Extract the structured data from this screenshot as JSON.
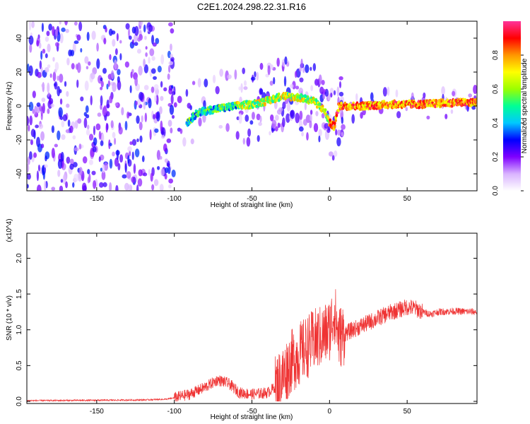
{
  "title": "C2E1.2024.298.22.31.R16",
  "chart_data": [
    {
      "type": "heatmap",
      "xlabel": "Height of straight line (km)",
      "ylabel": "Frequency (Hz)",
      "xlim": [
        -195,
        95
      ],
      "ylim": [
        -50,
        50
      ],
      "xticks": [
        -150,
        -100,
        -50,
        0,
        50
      ],
      "yticks": [
        -40,
        -20,
        0,
        20,
        40
      ],
      "colorbar": {
        "label": "Normalized spectral amplitude",
        "range": [
          0.0,
          1.0
        ],
        "ticks": [
          "0.0",
          "0.2",
          "0.4",
          "0.6",
          "0.8"
        ],
        "tick_values": [
          0.0,
          0.2,
          0.4,
          0.6,
          0.8
        ],
        "colors": [
          "#ffffff",
          "#d9b3ff",
          "#7f00ff",
          "#0000ff",
          "#00c8ff",
          "#00ff96",
          "#9bff00",
          "#ffff00",
          "#ff9600",
          "#ff0000",
          "#ff3399"
        ]
      },
      "ridge": {
        "x": [
          -92,
          -85,
          -75,
          -60,
          -50,
          -40,
          -30,
          -20,
          -10,
          -3,
          0,
          3,
          6,
          20,
          40,
          60,
          80,
          95
        ],
        "y": [
          -10,
          -4,
          -2,
          0,
          1,
          3,
          6,
          5,
          3,
          -3,
          -10,
          -12,
          0,
          0,
          1,
          1,
          2,
          2
        ]
      }
    },
    {
      "type": "line",
      "xlabel": "Height of straight line (km)",
      "ylabel": "SNR (10 * v/v)",
      "y_multiplier": "(x10^4)",
      "xlim": [
        -195,
        95
      ],
      "ylim": [
        -0.03,
        2.35
      ],
      "xticks": [
        -150,
        -100,
        -50,
        0,
        50
      ],
      "yticks": [
        "0.0",
        "0.5",
        "1.0",
        "1.5",
        "2.0"
      ],
      "ytick_values": [
        0.0,
        0.5,
        1.0,
        1.5,
        2.0
      ],
      "series": [
        {
          "color": "#ef3333",
          "x": [
            -195,
            -150,
            -120,
            -105,
            -100,
            -90,
            -80,
            -72,
            -65,
            -58,
            -50,
            -40,
            -35,
            -30,
            -25,
            -20,
            -15,
            -10,
            -5,
            0,
            3,
            6,
            10,
            20,
            30,
            40,
            45,
            50,
            55,
            60,
            65,
            70,
            80,
            95
          ],
          "y": [
            0.01,
            0.015,
            0.02,
            0.03,
            0.05,
            0.1,
            0.2,
            0.3,
            0.25,
            0.12,
            0.1,
            0.12,
            0.2,
            0.35,
            0.55,
            0.65,
            0.75,
            0.85,
            0.9,
            1.0,
            1.25,
            0.9,
            0.95,
            1.05,
            1.15,
            1.25,
            1.28,
            1.32,
            1.3,
            1.25,
            1.22,
            1.25,
            1.26,
            1.25
          ]
        }
      ]
    }
  ]
}
